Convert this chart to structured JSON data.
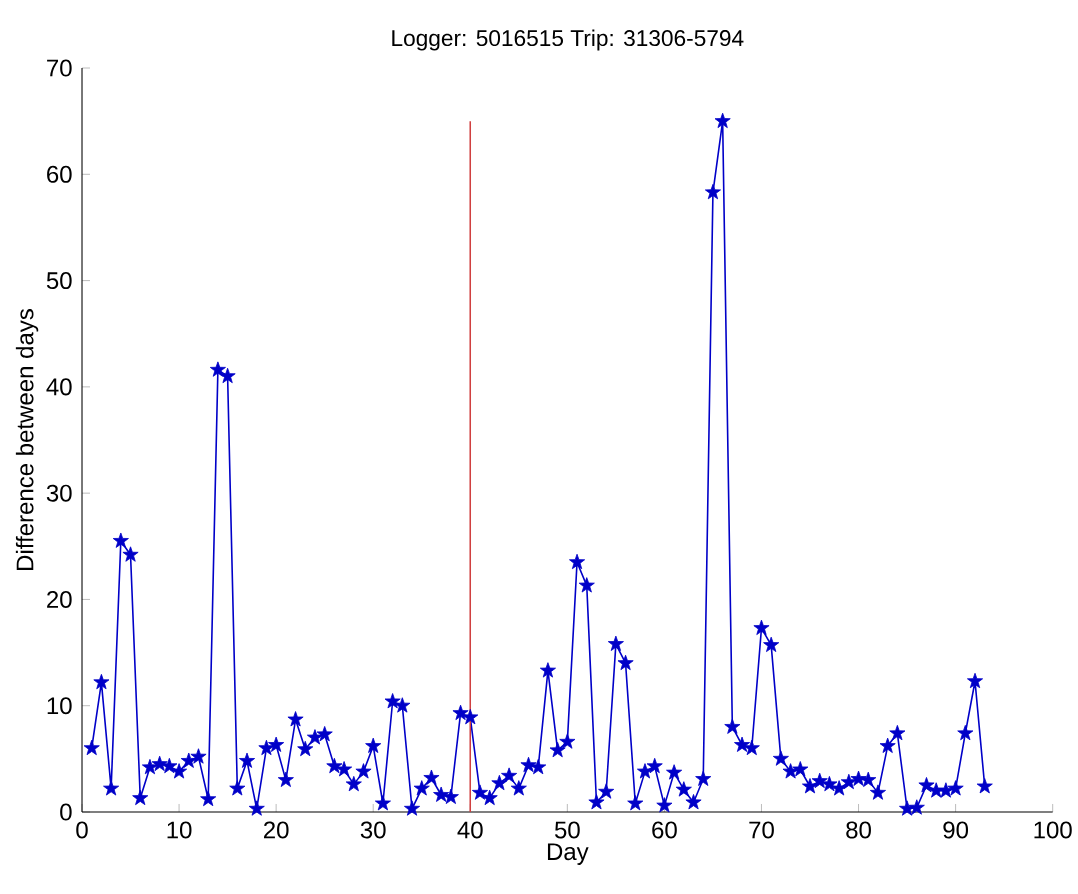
{
  "chart_data": {
    "type": "line",
    "title": "Logger: 5016515 Trip: 31306-5794",
    "xlabel": "Day",
    "ylabel": "Difference between days",
    "xlim": [
      0,
      100
    ],
    "xticks": [
      0,
      10,
      20,
      30,
      40,
      50,
      60,
      70,
      80,
      90,
      100
    ],
    "ylim": [
      0,
      70
    ],
    "yticks": [
      0,
      10,
      20,
      30,
      40,
      50,
      60,
      70
    ],
    "marker": "star",
    "grid": false,
    "series": [
      {
        "color": "#0000c8",
        "x": [
          1,
          2,
          3,
          4,
          5,
          6,
          7,
          8,
          9,
          10,
          11,
          12,
          13,
          14,
          15,
          16,
          17,
          18,
          19,
          20,
          21,
          22,
          23,
          24,
          25,
          26,
          27,
          28,
          29,
          30,
          31,
          32,
          33,
          34,
          35,
          36,
          37,
          38,
          39,
          40,
          41,
          42,
          43,
          44,
          45,
          46,
          47,
          48,
          49,
          50,
          51,
          52,
          53,
          54,
          55,
          56,
          57,
          58,
          59,
          60,
          61,
          62,
          63,
          64,
          65,
          66,
          67,
          68,
          69,
          70,
          71,
          72,
          73,
          74,
          75,
          76,
          77,
          78,
          79,
          80,
          81,
          82,
          83,
          84,
          85,
          86,
          87,
          88,
          89,
          90,
          91,
          92,
          93
        ],
        "values": [
          6,
          12.2,
          2.2,
          25.5,
          24.2,
          1.3,
          4.2,
          4.5,
          4.3,
          3.8,
          4.8,
          5.2,
          1.2,
          41.6,
          41,
          2.2,
          4.8,
          0.3,
          6,
          6.3,
          3,
          8.7,
          5.9,
          7,
          7.3,
          4.3,
          4,
          2.6,
          3.8,
          6.2,
          0.8,
          10.4,
          10,
          0.3,
          2.2,
          3.2,
          1.6,
          1.4,
          9.3,
          8.9,
          1.8,
          1.3,
          2.7,
          3.4,
          2.2,
          4.4,
          4.2,
          13.3,
          5.8,
          6.6,
          23.5,
          21.3,
          0.9,
          1.9,
          15.8,
          14,
          0.8,
          3.8,
          4.3,
          0.6,
          3.7,
          2.1,
          0.9,
          3.1,
          58.3,
          65,
          8,
          6.3,
          6,
          17.3,
          15.7,
          5,
          3.8,
          4,
          2.4,
          2.9,
          2.6,
          2.2,
          2.8,
          3.1,
          3,
          1.8,
          6.2,
          7.4,
          0.3,
          0.4,
          2.5,
          2,
          2,
          2.2,
          7.4,
          12.3,
          2.4
        ]
      },
      {
        "color": "#d04040",
        "marker": "none",
        "x": [
          40,
          40
        ],
        "values": [
          0,
          65
        ]
      }
    ]
  }
}
